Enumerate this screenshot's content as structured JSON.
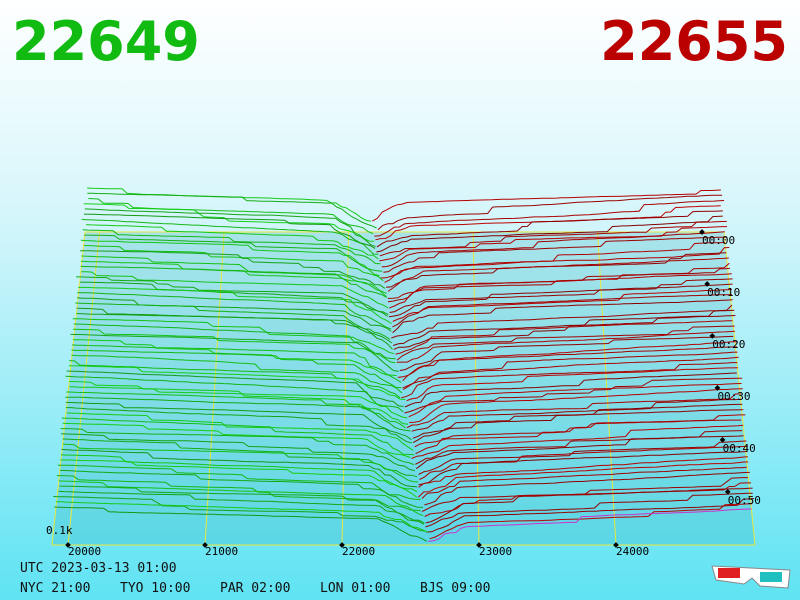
{
  "chart_data": {
    "type": "depth3d",
    "bid_price": "22649",
    "ask_price": "22655",
    "xlim": [
      19883,
      25015
    ],
    "xticks": [
      20000,
      21000,
      22000,
      23000,
      24000
    ],
    "time_ticks": [
      "00:00",
      "00:10",
      "00:20",
      "00:30",
      "00:40",
      "00:50"
    ],
    "depth_label": "0.1k",
    "footer": {
      "utc": "UTC 2023-03-13 01:00",
      "zones": [
        "NYC 21:00",
        "TYO 10:00",
        "PAR 02:00",
        "LON 01:00",
        "BJS 09:00"
      ]
    }
  }
}
